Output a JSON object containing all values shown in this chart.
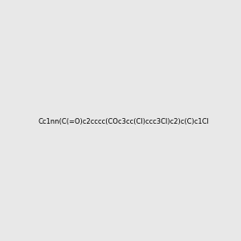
{
  "smiles": "Cc1nn(C(=O)c2cccc(COc3cc(Cl)ccc3Cl)c2)c(C)c1Cl",
  "image_size": 300,
  "background_color": "#e8e8e8",
  "bond_color": "black",
  "atom_colors": {
    "N": "#0000ff",
    "O": "#ff0000",
    "Cl": "#00aa00"
  },
  "title": ""
}
